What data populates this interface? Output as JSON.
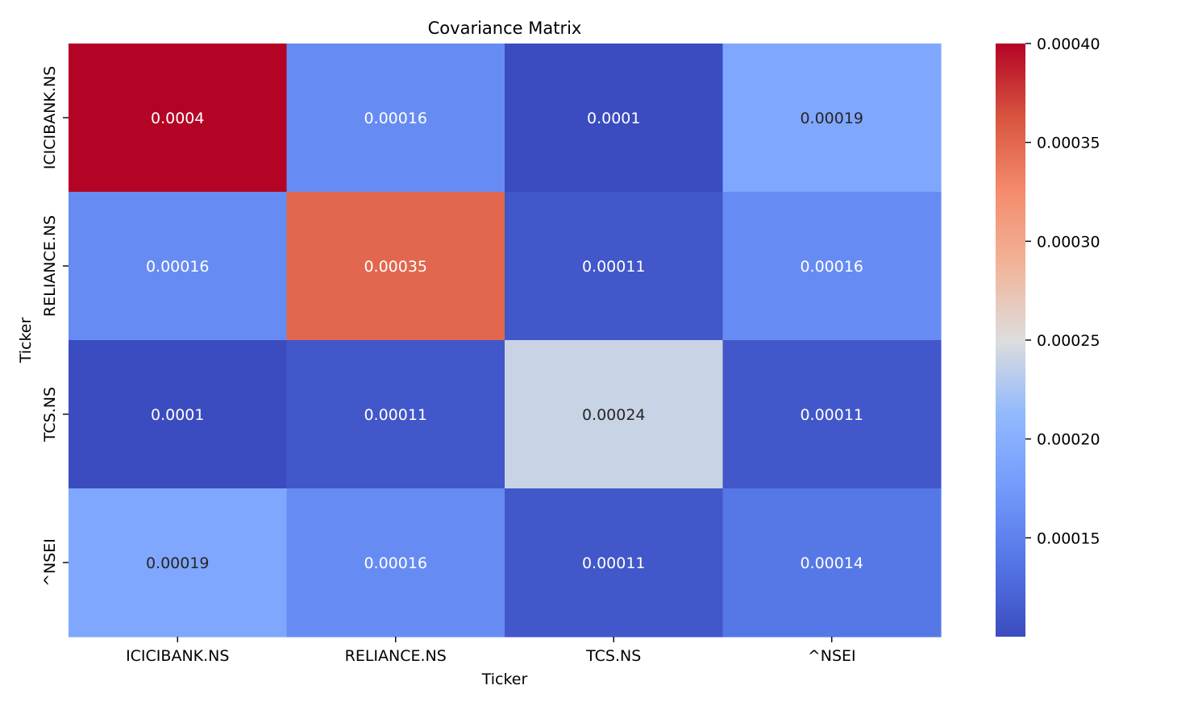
{
  "chart_data": {
    "type": "heatmap",
    "title": "Covariance Matrix",
    "xlabel": "Ticker",
    "ylabel": "Ticker",
    "x_categories": [
      "ICICIBANK.NS",
      "RELIANCE.NS",
      "TCS.NS",
      "^NSEI"
    ],
    "y_categories": [
      "ICICIBANK.NS",
      "RELIANCE.NS",
      "TCS.NS",
      "^NSEI"
    ],
    "values": [
      [
        0.0004,
        0.00016,
        0.0001,
        0.00019
      ],
      [
        0.00016,
        0.00035,
        0.00011,
        0.00016
      ],
      [
        0.0001,
        0.00011,
        0.00024,
        0.00011
      ],
      [
        0.00019,
        0.00016,
        0.00011,
        0.00014
      ]
    ],
    "cell_labels": [
      [
        "0.0004",
        "0.00016",
        "0.0001",
        "0.00019"
      ],
      [
        "0.00016",
        "0.00035",
        "0.00011",
        "0.00016"
      ],
      [
        "0.0001",
        "0.00011",
        "0.00024",
        "0.00011"
      ],
      [
        "0.00019",
        "0.00016",
        "0.00011",
        "0.00014"
      ]
    ],
    "colormap": "coolwarm",
    "colorbar": {
      "range": [
        0.0001,
        0.0004
      ],
      "ticks": [
        0.00015,
        0.0002,
        0.00025,
        0.0003,
        0.00035,
        0.0004
      ],
      "tick_labels": [
        "0.00015",
        "0.00020",
        "0.00025",
        "0.00030",
        "0.00035",
        "0.00040"
      ],
      "placement": "right"
    },
    "annotation_colors": {
      "light": "#ffffff",
      "dark": "#262626"
    }
  }
}
